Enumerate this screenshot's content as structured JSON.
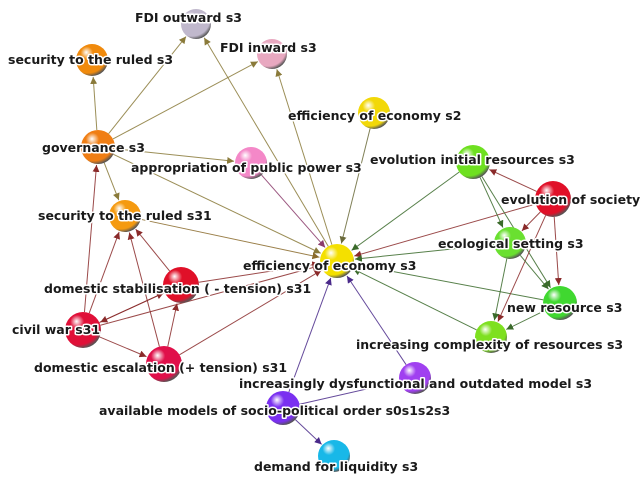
{
  "nodes": [
    {
      "id": "fdi_out",
      "label": "FDI outward s3",
      "color": "#c0b8cc"
    },
    {
      "id": "fdi_in",
      "label": "FDI inward s3",
      "color": "#e8a8c0"
    },
    {
      "id": "sec_ruled_s3",
      "label": "security to the ruled s3",
      "color": "#f08a0c"
    },
    {
      "id": "eff_s2",
      "label": "efficiency of economy s2",
      "color": "#f2d808"
    },
    {
      "id": "governance",
      "label": "governance s3",
      "color": "#f07e14"
    },
    {
      "id": "approp",
      "label": "appropriation of public power  s3",
      "color": "#f488c8"
    },
    {
      "id": "evo_init",
      "label": "evolution initial resources s3",
      "color": "#6ee020"
    },
    {
      "id": "evo_soc",
      "label": "evolution of society s3",
      "color": "#e01028"
    },
    {
      "id": "sec_ruled_s31",
      "label": "security to the ruled s31",
      "color": "#f59a10"
    },
    {
      "id": "eco_setting",
      "label": "ecological setting s3",
      "color": "#6ae030"
    },
    {
      "id": "eff_s3",
      "label": "efficiency of economy s3",
      "color": "#f4e000"
    },
    {
      "id": "dom_stab",
      "label": "domestic stabilisation ( - tension) s31",
      "color": "#e01028"
    },
    {
      "id": "new_res",
      "label": "new resource s3",
      "color": "#40d830"
    },
    {
      "id": "civil_war",
      "label": "civil war s31",
      "color": "#e01038"
    },
    {
      "id": "incr_complex",
      "label": "increasing complexity of resources s3",
      "color": "#7ee020"
    },
    {
      "id": "dom_esc",
      "label": "domestic escalation (+ tension) s31",
      "color": "#e0104a"
    },
    {
      "id": "dysfunc",
      "label": "increasingly dysfunctional and outdated model s3",
      "color": "#a040f0"
    },
    {
      "id": "avail_models",
      "label": "available models of socio-political order s0s1s2s3",
      "color": "#7a30f0"
    },
    {
      "id": "demand_liq",
      "label": "demand for liquidity s3",
      "color": "#18b8e8"
    }
  ],
  "edges": [
    {
      "from": "governance",
      "to": "fdi_out",
      "color": "#8a7a3a"
    },
    {
      "from": "governance",
      "to": "fdi_in",
      "color": "#8a7a3a"
    },
    {
      "from": "governance",
      "to": "sec_ruled_s3",
      "color": "#8a7a3a"
    },
    {
      "from": "governance",
      "to": "sec_ruled_s31",
      "color": "#8a7a3a"
    },
    {
      "from": "governance",
      "to": "approp",
      "color": "#8a7a3a"
    },
    {
      "from": "governance",
      "to": "eff_s3",
      "color": "#8a7a3a"
    },
    {
      "from": "eff_s3",
      "to": "fdi_out",
      "color": "#8a7a3a"
    },
    {
      "from": "eff_s3",
      "to": "fdi_in",
      "color": "#8a7a3a"
    },
    {
      "from": "eff_s2",
      "to": "eff_s3",
      "color": "#6a6a3a"
    },
    {
      "from": "approp",
      "to": "eff_s3",
      "color": "#8a3a6a"
    },
    {
      "from": "sec_ruled_s31",
      "to": "eff_s3",
      "color": "#8a6a2a"
    },
    {
      "from": "dom_stab",
      "to": "eff_s3",
      "color": "#8a2a2a"
    },
    {
      "from": "civil_war",
      "to": "eff_s3",
      "color": "#8a2a2a"
    },
    {
      "from": "dom_esc",
      "to": "eff_s3",
      "color": "#8a2a2a"
    },
    {
      "from": "evo_init",
      "to": "eff_s3",
      "color": "#3a6a2a"
    },
    {
      "from": "evo_soc",
      "to": "eff_s3",
      "color": "#8a2a2a"
    },
    {
      "from": "eco_setting",
      "to": "eff_s3",
      "color": "#3a6a2a"
    },
    {
      "from": "new_res",
      "to": "eff_s3",
      "color": "#3a6a2a"
    },
    {
      "from": "incr_complex",
      "to": "eff_s3",
      "color": "#3a6a2a"
    },
    {
      "from": "dysfunc",
      "to": "eff_s3",
      "color": "#4a2a8a"
    },
    {
      "from": "avail_models",
      "to": "eff_s3",
      "color": "#4a2a8a"
    },
    {
      "from": "avail_models",
      "to": "dysfunc",
      "color": "#4a2a8a"
    },
    {
      "from": "avail_models",
      "to": "demand_liq",
      "color": "#4a2a8a"
    },
    {
      "from": "civil_war",
      "to": "governance",
      "color": "#8a2a2a"
    },
    {
      "from": "civil_war",
      "to": "sec_ruled_s31",
      "color": "#8a2a2a"
    },
    {
      "from": "civil_war",
      "to": "dom_stab",
      "color": "#8a2a2a"
    },
    {
      "from": "civil_war",
      "to": "dom_esc",
      "color": "#8a2a2a"
    },
    {
      "from": "dom_esc",
      "to": "sec_ruled_s31",
      "color": "#8a2a2a"
    },
    {
      "from": "dom_esc",
      "to": "dom_stab",
      "color": "#8a2a2a"
    },
    {
      "from": "dom_stab",
      "to": "sec_ruled_s31",
      "color": "#8a2a2a"
    },
    {
      "from": "dom_stab",
      "to": "civil_war",
      "color": "#8a2a2a"
    },
    {
      "from": "evo_init",
      "to": "eco_setting",
      "color": "#3a6a2a"
    },
    {
      "from": "evo_init",
      "to": "new_res",
      "color": "#3a6a2a"
    },
    {
      "from": "evo_soc",
      "to": "evo_init",
      "color": "#8a2a2a"
    },
    {
      "from": "evo_soc",
      "to": "eco_setting",
      "color": "#8a2a2a"
    },
    {
      "from": "evo_soc",
      "to": "new_res",
      "color": "#8a2a2a"
    },
    {
      "from": "evo_soc",
      "to": "incr_complex",
      "color": "#8a2a2a"
    },
    {
      "from": "eco_setting",
      "to": "new_res",
      "color": "#3a6a2a"
    },
    {
      "from": "eco_setting",
      "to": "incr_complex",
      "color": "#3a6a2a"
    },
    {
      "from": "new_res",
      "to": "incr_complex",
      "color": "#3a6a2a"
    }
  ]
}
